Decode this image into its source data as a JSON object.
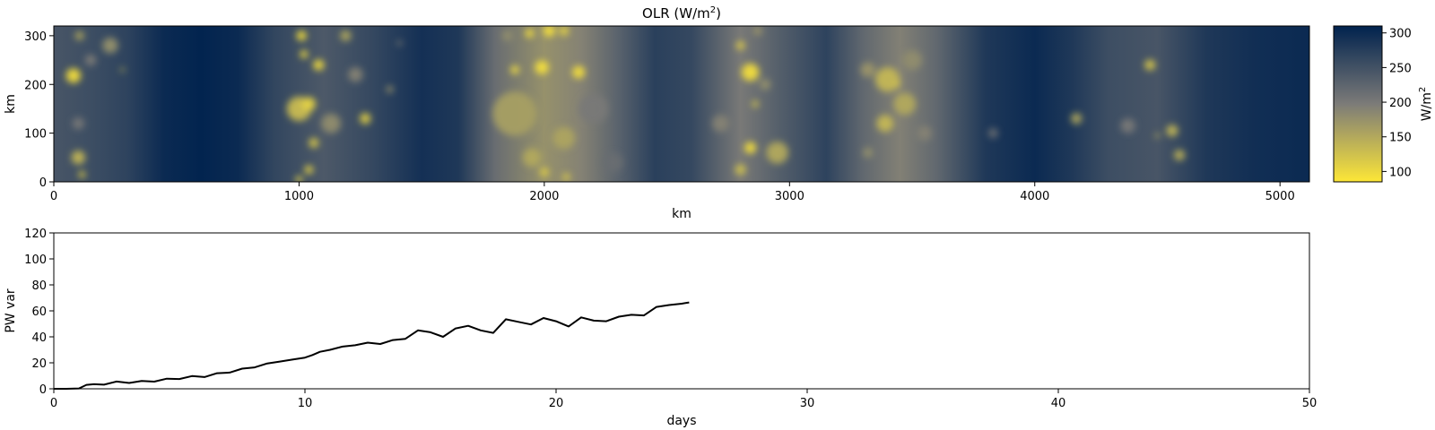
{
  "chart_data": [
    {
      "type": "heatmap",
      "title": "OLR (W/m²)",
      "title_main": "OLR (W/m",
      "title_sup": "2",
      "title_end": ")",
      "xlabel": "km",
      "ylabel": "km",
      "xlim": [
        0,
        5120
      ],
      "ylim": [
        0,
        320
      ],
      "xticks": [
        0,
        1000,
        2000,
        3000,
        4000,
        5000
      ],
      "yticks": [
        0,
        100,
        200,
        300
      ],
      "colormap": "cividis_r",
      "colors": {
        "high": "#00224e",
        "mid": "#7c7b78",
        "low": "#fde737"
      },
      "colorbar": {
        "label": "W/m²",
        "label_main": "W/m",
        "label_sup": "2",
        "range": [
          85,
          310
        ],
        "ticks": [
          100,
          150,
          200,
          250,
          300
        ]
      },
      "field": {
        "background_olr": [
          {
            "x": 0,
            "v": 245
          },
          {
            "x": 150,
            "v": 255
          },
          {
            "x": 300,
            "v": 268
          },
          {
            "x": 450,
            "v": 300
          },
          {
            "x": 600,
            "v": 308
          },
          {
            "x": 750,
            "v": 300
          },
          {
            "x": 900,
            "v": 265
          },
          {
            "x": 1100,
            "v": 240
          },
          {
            "x": 1300,
            "v": 262
          },
          {
            "x": 1500,
            "v": 292
          },
          {
            "x": 1650,
            "v": 282
          },
          {
            "x": 1800,
            "v": 215
          },
          {
            "x": 2000,
            "v": 175
          },
          {
            "x": 2150,
            "v": 190
          },
          {
            "x": 2300,
            "v": 228
          },
          {
            "x": 2450,
            "v": 272
          },
          {
            "x": 2600,
            "v": 262
          },
          {
            "x": 2800,
            "v": 200
          },
          {
            "x": 2950,
            "v": 232
          },
          {
            "x": 3150,
            "v": 268
          },
          {
            "x": 3300,
            "v": 222
          },
          {
            "x": 3450,
            "v": 192
          },
          {
            "x": 3600,
            "v": 222
          },
          {
            "x": 3800,
            "v": 282
          },
          {
            "x": 4000,
            "v": 300
          },
          {
            "x": 4150,
            "v": 282
          },
          {
            "x": 4300,
            "v": 255
          },
          {
            "x": 4500,
            "v": 245
          },
          {
            "x": 4700,
            "v": 282
          },
          {
            "x": 4900,
            "v": 295
          },
          {
            "x": 5120,
            "v": 300
          }
        ],
        "cells": [
          {
            "x": 80,
            "y": 218,
            "r": 30,
            "v": 95
          },
          {
            "x": 105,
            "y": 300,
            "r": 18,
            "v": 150
          },
          {
            "x": 100,
            "y": 50,
            "r": 28,
            "v": 135
          },
          {
            "x": 115,
            "y": 15,
            "r": 14,
            "v": 110
          },
          {
            "x": 230,
            "y": 280,
            "r": 32,
            "v": 175
          },
          {
            "x": 280,
            "y": 230,
            "r": 8,
            "v": 125
          },
          {
            "x": 150,
            "y": 250,
            "r": 22,
            "v": 195
          },
          {
            "x": 100,
            "y": 120,
            "r": 24,
            "v": 200
          },
          {
            "x": 1000,
            "y": 150,
            "r": 50,
            "v": 130
          },
          {
            "x": 1040,
            "y": 160,
            "r": 28,
            "v": 105
          },
          {
            "x": 1010,
            "y": 300,
            "r": 20,
            "v": 90
          },
          {
            "x": 1020,
            "y": 262,
            "r": 16,
            "v": 92
          },
          {
            "x": 1080,
            "y": 240,
            "r": 22,
            "v": 95
          },
          {
            "x": 1060,
            "y": 80,
            "r": 20,
            "v": 118
          },
          {
            "x": 1040,
            "y": 25,
            "r": 18,
            "v": 110
          },
          {
            "x": 1000,
            "y": 5,
            "r": 14,
            "v": 100
          },
          {
            "x": 1130,
            "y": 120,
            "r": 40,
            "v": 180
          },
          {
            "x": 1190,
            "y": 300,
            "r": 22,
            "v": 150
          },
          {
            "x": 1270,
            "y": 130,
            "r": 22,
            "v": 110
          },
          {
            "x": 1230,
            "y": 220,
            "r": 30,
            "v": 190
          },
          {
            "x": 1370,
            "y": 190,
            "r": 14,
            "v": 170
          },
          {
            "x": 1410,
            "y": 285,
            "r": 10,
            "v": 190
          },
          {
            "x": 1880,
            "y": 140,
            "r": 90,
            "v": 160
          },
          {
            "x": 2020,
            "y": 310,
            "r": 24,
            "v": 92
          },
          {
            "x": 1940,
            "y": 305,
            "r": 18,
            "v": 95
          },
          {
            "x": 1990,
            "y": 235,
            "r": 28,
            "v": 92
          },
          {
            "x": 2140,
            "y": 225,
            "r": 26,
            "v": 95
          },
          {
            "x": 2080,
            "y": 90,
            "r": 45,
            "v": 155
          },
          {
            "x": 1950,
            "y": 50,
            "r": 38,
            "v": 150
          },
          {
            "x": 1880,
            "y": 230,
            "r": 18,
            "v": 100
          },
          {
            "x": 2000,
            "y": 20,
            "r": 18,
            "v": 110
          },
          {
            "x": 2090,
            "y": 10,
            "r": 16,
            "v": 120
          },
          {
            "x": 2200,
            "y": 150,
            "r": 60,
            "v": 200
          },
          {
            "x": 1850,
            "y": 300,
            "r": 20,
            "v": 175
          },
          {
            "x": 2080,
            "y": 310,
            "r": 20,
            "v": 110
          },
          {
            "x": 2280,
            "y": 40,
            "r": 40,
            "v": 215
          },
          {
            "x": 2840,
            "y": 225,
            "r": 36,
            "v": 95
          },
          {
            "x": 2800,
            "y": 280,
            "r": 18,
            "v": 115
          },
          {
            "x": 2860,
            "y": 160,
            "r": 14,
            "v": 125
          },
          {
            "x": 2840,
            "y": 70,
            "r": 24,
            "v": 95
          },
          {
            "x": 2950,
            "y": 60,
            "r": 45,
            "v": 150
          },
          {
            "x": 2800,
            "y": 25,
            "r": 22,
            "v": 125
          },
          {
            "x": 2720,
            "y": 120,
            "r": 35,
            "v": 190
          },
          {
            "x": 2900,
            "y": 200,
            "r": 22,
            "v": 175
          },
          {
            "x": 2870,
            "y": 310,
            "r": 18,
            "v": 170
          },
          {
            "x": 3400,
            "y": 210,
            "r": 50,
            "v": 135
          },
          {
            "x": 3470,
            "y": 160,
            "r": 45,
            "v": 150
          },
          {
            "x": 3440,
            "y": 200,
            "r": 10,
            "v": 100
          },
          {
            "x": 3390,
            "y": 120,
            "r": 35,
            "v": 135
          },
          {
            "x": 3320,
            "y": 230,
            "r": 30,
            "v": 170
          },
          {
            "x": 3500,
            "y": 250,
            "r": 40,
            "v": 180
          },
          {
            "x": 3320,
            "y": 60,
            "r": 20,
            "v": 175
          },
          {
            "x": 3550,
            "y": 100,
            "r": 30,
            "v": 190
          },
          {
            "x": 4170,
            "y": 130,
            "r": 22,
            "v": 150
          },
          {
            "x": 4470,
            "y": 240,
            "r": 22,
            "v": 120
          },
          {
            "x": 4560,
            "y": 105,
            "r": 24,
            "v": 135
          },
          {
            "x": 4590,
            "y": 55,
            "r": 22,
            "v": 140
          },
          {
            "x": 4500,
            "y": 95,
            "r": 10,
            "v": 150
          },
          {
            "x": 4380,
            "y": 115,
            "r": 30,
            "v": 200
          },
          {
            "x": 3830,
            "y": 100,
            "r": 20,
            "v": 215
          }
        ]
      }
    },
    {
      "type": "line",
      "title": "",
      "xlabel": "days",
      "ylabel": "PW var",
      "xlim": [
        0,
        50
      ],
      "ylim": [
        0,
        120
      ],
      "xticks": [
        0,
        10,
        20,
        30,
        40,
        50
      ],
      "yticks": [
        0,
        20,
        40,
        60,
        80,
        100,
        120
      ],
      "series": [
        {
          "color": "#000000",
          "points": [
            [
              0,
              0
            ],
            [
              0.5,
              0
            ],
            [
              1.0,
              0.3
            ],
            [
              1.3,
              3.0
            ],
            [
              1.6,
              3.5
            ],
            [
              2.0,
              3.2
            ],
            [
              2.5,
              5.6
            ],
            [
              3.0,
              4.5
            ],
            [
              3.5,
              6.0
            ],
            [
              4.0,
              5.5
            ],
            [
              4.5,
              7.8
            ],
            [
              5.0,
              7.5
            ],
            [
              5.5,
              9.8
            ],
            [
              6.0,
              9.0
            ],
            [
              6.5,
              12.0
            ],
            [
              7.0,
              12.5
            ],
            [
              7.5,
              15.5
            ],
            [
              8.0,
              16.5
            ],
            [
              8.5,
              19.5
            ],
            [
              9.0,
              21.0
            ],
            [
              9.5,
              22.5
            ],
            [
              10.0,
              24.0
            ],
            [
              10.3,
              26.0
            ],
            [
              10.6,
              28.5
            ],
            [
              11.0,
              30.0
            ],
            [
              11.5,
              32.5
            ],
            [
              12.0,
              33.5
            ],
            [
              12.5,
              35.5
            ],
            [
              13.0,
              34.5
            ],
            [
              13.5,
              37.5
            ],
            [
              14.0,
              38.5
            ],
            [
              14.5,
              45.0
            ],
            [
              15.0,
              43.5
            ],
            [
              15.5,
              40.0
            ],
            [
              16.0,
              46.5
            ],
            [
              16.5,
              48.5
            ],
            [
              17.0,
              45.0
            ],
            [
              17.5,
              43.0
            ],
            [
              18.0,
              53.5
            ],
            [
              18.5,
              51.5
            ],
            [
              19.0,
              49.5
            ],
            [
              19.5,
              54.5
            ],
            [
              20.0,
              52.0
            ],
            [
              20.5,
              48.0
            ],
            [
              21.0,
              55.0
            ],
            [
              21.5,
              52.5
            ],
            [
              22.0,
              52.0
            ],
            [
              22.5,
              55.5
            ],
            [
              23.0,
              57.0
            ],
            [
              23.5,
              56.5
            ],
            [
              24.0,
              63.0
            ],
            [
              24.5,
              64.5
            ],
            [
              25.0,
              65.5
            ],
            [
              25.3,
              66.5
            ]
          ]
        }
      ]
    }
  ]
}
